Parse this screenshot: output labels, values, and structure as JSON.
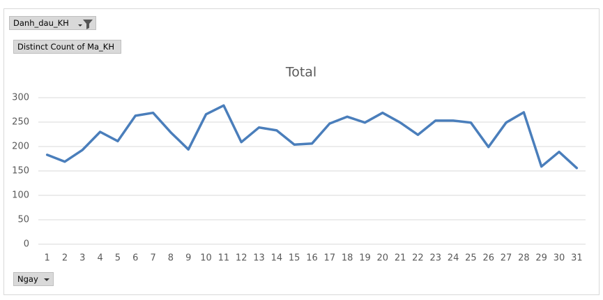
{
  "chart_data": {
    "type": "line",
    "title": "Total",
    "field_buttons": {
      "filter": "Danh_dau_KH",
      "value_field": "Distinct  Count of Ma_KH",
      "axis_field": "Ngay"
    },
    "categories": [
      1,
      2,
      3,
      4,
      5,
      6,
      7,
      8,
      9,
      10,
      11,
      12,
      13,
      14,
      15,
      16,
      17,
      18,
      19,
      20,
      21,
      22,
      23,
      24,
      25,
      26,
      27,
      28,
      29,
      30,
      31
    ],
    "values": [
      183,
      169,
      193,
      230,
      211,
      263,
      269,
      229,
      194,
      266,
      284,
      209,
      239,
      233,
      204,
      206,
      247,
      261,
      249,
      269,
      249,
      224,
      253,
      253,
      249,
      199,
      249,
      270,
      159,
      189,
      156
    ],
    "color": "#4a7ebb",
    "ylim": [
      0,
      300
    ],
    "yticks": [
      0,
      50,
      100,
      150,
      200,
      250,
      300
    ],
    "grid": true
  }
}
